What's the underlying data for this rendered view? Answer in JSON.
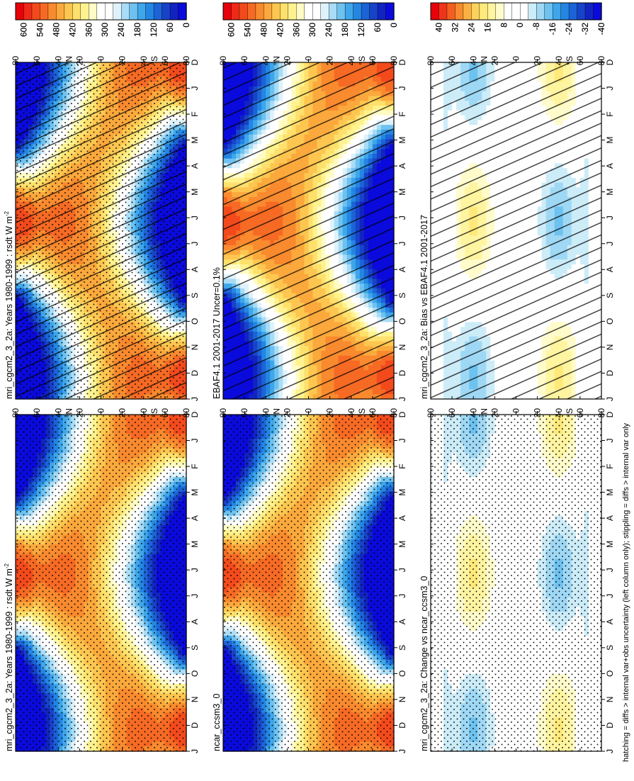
{
  "figure": {
    "caption": "hatching = diffs > internal var+obs uncertainty (left column only); stippling = diffs > internal var only"
  },
  "colorbars": {
    "absolute": {
      "tick_labels": [
        "600",
        "540",
        "480",
        "420",
        "360",
        "300",
        "240",
        "180",
        "120",
        "60",
        "0"
      ],
      "colors": [
        "#e8000a",
        "#ef2a16",
        "#f34a1c",
        "#f66a24",
        "#f98a2e",
        "#fba93c",
        "#fdc650",
        "#fee06c",
        "#fff28f",
        "#fffbc4",
        "#ffffff",
        "#ffffff",
        "#dff2fb",
        "#a9dcf6",
        "#6ec2ef",
        "#3fa6ea",
        "#2486e3",
        "#1c64d6",
        "#1743c9",
        "#1224c0",
        "#0a0adc"
      ]
    },
    "difference": {
      "tick_labels": [
        "40",
        "32",
        "24",
        "16",
        "8",
        "0",
        "-8",
        "-16",
        "-24",
        "-32",
        "-40"
      ],
      "colors": [
        "#e8000a",
        "#f0341a",
        "#f55e22",
        "#f98a2e",
        "#fbb142",
        "#fdd25c",
        "#fee97a",
        "#fff4a0",
        "#fffbcb",
        "#ffffff",
        "#ffffff",
        "#ffffff",
        "#ccecf8",
        "#9fd8f4",
        "#6ec2ef",
        "#3fa6ea",
        "#2486e3",
        "#1c64d6",
        "#1743c9",
        "#1224c0",
        "#0a0adc"
      ]
    }
  },
  "chart_data": [
    {
      "type": "heatmap",
      "title": "mri_cgcm2_3_2a: Years 1980-1999 : rsdt W m",
      "title_sup": "-2",
      "x_tick_labels": [
        "D",
        "J",
        "F",
        "M",
        "A",
        "M",
        "J",
        "J",
        "A",
        "S",
        "O",
        "N",
        "D",
        "J"
      ],
      "y_tick_labels": [
        "80",
        "60",
        "40",
        "20",
        "0",
        "20",
        "40",
        "60",
        "80"
      ],
      "y_hemisphere_labels": [
        "°N",
        "°S"
      ],
      "value_range": [
        0,
        600
      ],
      "colorbar": "absolute",
      "overlay": "hatching+stippling"
    },
    {
      "type": "heatmap",
      "title": "mri_cgcm2_3_2a: Years 1980-1999 : rsdt W m",
      "title_sup": "-2",
      "x_tick_labels": [
        "D",
        "J",
        "F",
        "M",
        "A",
        "M",
        "J",
        "J",
        "A",
        "S",
        "O",
        "N",
        "D",
        "J"
      ],
      "y_tick_labels": [
        "80",
        "60",
        "40",
        "20",
        "0",
        "20",
        "40",
        "60",
        "80"
      ],
      "y_hemisphere_labels": [
        "°N",
        "°S"
      ],
      "value_range": [
        0,
        600
      ],
      "colorbar": "absolute",
      "overlay": "stippling"
    },
    {
      "type": "heatmap",
      "title": "EBAF4.1 2001-2017 Uncer=0.1%",
      "title_sup": "",
      "x_tick_labels": [
        "D",
        "J",
        "F",
        "M",
        "A",
        "M",
        "J",
        "J",
        "A",
        "S",
        "O",
        "N",
        "D",
        "J"
      ],
      "y_tick_labels": [
        "80",
        "60",
        "40",
        "20",
        "0",
        "20",
        "40",
        "60",
        "80"
      ],
      "y_hemisphere_labels": [
        "°N",
        "°S"
      ],
      "value_range": [
        0,
        600
      ],
      "colorbar": "absolute",
      "overlay": "hatching"
    },
    {
      "type": "heatmap",
      "title": "ncar_ccsm3_0",
      "title_sup": "",
      "x_tick_labels": [
        "D",
        "J",
        "F",
        "M",
        "A",
        "M",
        "J",
        "J",
        "A",
        "S",
        "O",
        "N",
        "D",
        "J"
      ],
      "y_tick_labels": [
        "80",
        "60",
        "40",
        "20",
        "0",
        "20",
        "40",
        "60",
        "80"
      ],
      "y_hemisphere_labels": [
        "°N",
        "°S"
      ],
      "value_range": [
        0,
        600
      ],
      "colorbar": "absolute",
      "overlay": "stippling"
    },
    {
      "type": "heatmap",
      "title": "mri_cgcm2_3_2a: Bias vs EBAF4.1 2001-2017",
      "title_sup": "",
      "x_tick_labels": [
        "D",
        "J",
        "F",
        "M",
        "A",
        "M",
        "J",
        "J",
        "A",
        "S",
        "O",
        "N",
        "D",
        "J"
      ],
      "y_tick_labels": [
        "80",
        "60",
        "40",
        "20",
        "0",
        "20",
        "40",
        "60",
        "80"
      ],
      "y_hemisphere_labels": [
        "°N",
        "°S"
      ],
      "value_range": [
        -40,
        40
      ],
      "colorbar": "difference",
      "overlay": "hatching"
    },
    {
      "type": "heatmap",
      "title": "mri_cgcm2_3_2a: Change vs ncar_ccsm3_0",
      "title_sup": "",
      "x_tick_labels": [
        "D",
        "J",
        "F",
        "M",
        "A",
        "M",
        "J",
        "J",
        "A",
        "S",
        "O",
        "N",
        "D",
        "J"
      ],
      "y_tick_labels": [
        "80",
        "60",
        "40",
        "20",
        "0",
        "20",
        "40",
        "60",
        "80"
      ],
      "y_hemisphere_labels": [
        "°N",
        "°S"
      ],
      "value_range": [
        -40,
        40
      ],
      "colorbar": "difference",
      "overlay": "stippling"
    }
  ]
}
